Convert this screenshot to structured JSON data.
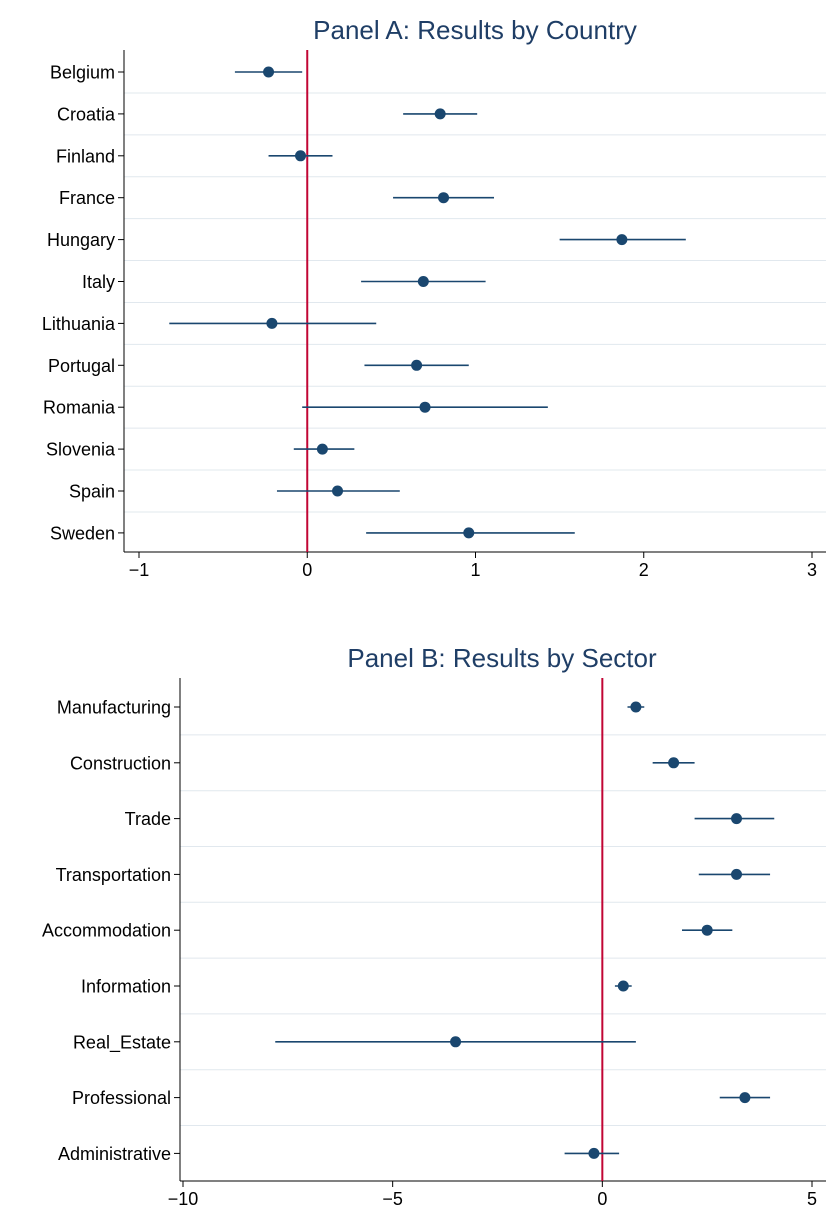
{
  "colors": {
    "point": "#1a476f",
    "ci_line": "#1a476f",
    "reference_line": "#c10534",
    "gridline": "#e1e8ee",
    "axis": "#000000",
    "title": "#1f3e66"
  },
  "chart_data": [
    {
      "type": "scatter",
      "title": "Panel A: Results by Country",
      "xlabel": "",
      "ylabel": "",
      "xlim": [
        -1,
        3
      ],
      "xticks": [
        -1,
        0,
        1,
        2,
        3
      ],
      "xtick_labels": [
        "−1",
        "0",
        "1",
        "2",
        "3"
      ],
      "reference_x": 0,
      "grid": true,
      "legend": "none",
      "categories": [
        "Belgium",
        "Croatia",
        "Finland",
        "France",
        "Hungary",
        "Italy",
        "Lithuania",
        "Portugal",
        "Romania",
        "Slovenia",
        "Spain",
        "Sweden"
      ],
      "estimates": [
        -0.23,
        0.79,
        -0.04,
        0.81,
        1.87,
        0.69,
        -0.21,
        0.65,
        0.7,
        0.09,
        0.18,
        0.96
      ],
      "ci_low": [
        -0.43,
        0.57,
        -0.23,
        0.51,
        1.5,
        0.32,
        -0.82,
        0.34,
        -0.03,
        -0.08,
        -0.18,
        0.35
      ],
      "ci_high": [
        -0.03,
        1.01,
        0.15,
        1.11,
        2.25,
        1.06,
        0.41,
        0.96,
        1.43,
        0.28,
        0.55,
        1.59
      ]
    },
    {
      "type": "scatter",
      "title": "Panel B: Results by Sector",
      "xlabel": "",
      "ylabel": "",
      "xlim": [
        -10,
        5
      ],
      "xticks": [
        -10,
        -5,
        0,
        5
      ],
      "xtick_labels": [
        "−10",
        "−5",
        "0",
        "5"
      ],
      "reference_x": 0,
      "grid": true,
      "legend": "none",
      "categories": [
        "Manufacturing",
        "Construction",
        "Trade",
        "Transportation",
        "Accommodation",
        "Information",
        "Real_Estate",
        "Professional",
        "Administrative"
      ],
      "estimates": [
        0.8,
        1.7,
        3.2,
        3.2,
        2.5,
        0.5,
        -3.5,
        3.4,
        -0.2
      ],
      "ci_low": [
        0.6,
        1.2,
        2.2,
        2.3,
        1.9,
        0.3,
        -7.8,
        2.8,
        -0.9
      ],
      "ci_high": [
        1.0,
        2.2,
        4.1,
        4.0,
        3.1,
        0.7,
        0.8,
        4.0,
        0.4
      ]
    }
  ]
}
